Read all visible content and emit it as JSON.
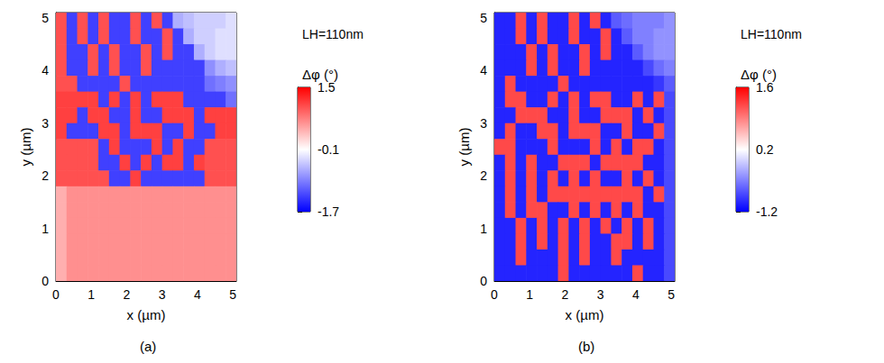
{
  "chart_data": [
    {
      "type": "heatmap",
      "caption": "(a)",
      "annotations": [
        "LH=110nm"
      ],
      "x_label": "x (µm)",
      "y_label": "y (µm)",
      "xlim": [
        0,
        5.1
      ],
      "ylim": [
        0,
        5.1
      ],
      "xticks": [
        0,
        1,
        2,
        3,
        4,
        5
      ],
      "yticks": [
        0,
        1,
        2,
        3,
        4,
        5
      ],
      "x": [
        0.15,
        0.45,
        0.75,
        1.05,
        1.35,
        1.65,
        1.95,
        2.25,
        2.55,
        2.85,
        3.15,
        3.45,
        3.75,
        4.05,
        4.35,
        4.65,
        4.95
      ],
      "y": [
        4.95,
        4.65,
        4.35,
        4.05,
        3.75,
        3.45,
        3.15,
        2.85,
        2.55,
        2.25,
        1.95,
        1.65,
        1.35,
        1.05,
        0.75,
        0.45,
        0.15
      ],
      "z": [
        [
          1.0,
          -1.3,
          1.0,
          -1.3,
          1.0,
          -1.3,
          -1.3,
          1.0,
          -1.3,
          1.0,
          -1.3,
          -0.6,
          -0.5,
          -0.4,
          -0.4,
          -0.4,
          -0.3
        ],
        [
          1.0,
          -1.3,
          1.0,
          -1.3,
          1.0,
          -1.3,
          -1.3,
          1.0,
          -1.3,
          -1.3,
          1.0,
          -1.3,
          -0.6,
          -0.4,
          -0.4,
          -0.3,
          -0.3
        ],
        [
          1.0,
          -1.3,
          -1.3,
          1.0,
          -1.3,
          1.0,
          -1.3,
          -1.3,
          1.0,
          -1.3,
          1.0,
          -1.3,
          -1.3,
          -0.6,
          -0.4,
          -0.3,
          -0.3
        ],
        [
          1.0,
          -1.3,
          -1.3,
          1.0,
          -1.3,
          1.0,
          -1.3,
          -1.3,
          1.0,
          -1.3,
          -1.3,
          -1.3,
          -1.3,
          -1.3,
          -0.8,
          -0.6,
          -0.5
        ],
        [
          1.0,
          1.0,
          -1.3,
          -1.3,
          -1.3,
          -1.3,
          1.0,
          -1.3,
          -1.3,
          -1.3,
          -1.3,
          -1.3,
          -1.3,
          -1.3,
          -1.0,
          -0.9,
          -0.8
        ],
        [
          1.1,
          1.1,
          1.1,
          1.1,
          -1.3,
          1.1,
          -1.3,
          1.1,
          -1.3,
          1.1,
          1.1,
          1.1,
          -1.3,
          -1.3,
          -1.3,
          -1.3,
          -1.0
        ],
        [
          1.1,
          1.1,
          -1.3,
          1.1,
          1.1,
          -1.3,
          -1.3,
          1.1,
          -1.3,
          -1.3,
          1.1,
          1.1,
          1.1,
          -1.3,
          1.1,
          1.1,
          1.1
        ],
        [
          1.1,
          -1.3,
          -1.3,
          -1.3,
          1.1,
          1.1,
          -1.3,
          1.1,
          1.1,
          1.1,
          -1.3,
          -1.3,
          1.1,
          -1.3,
          -1.3,
          1.1,
          1.1
        ],
        [
          1.0,
          1.0,
          1.0,
          1.0,
          -1.3,
          1.1,
          -1.3,
          -1.3,
          -1.3,
          1.1,
          -1.3,
          1.1,
          -1.3,
          -1.3,
          1.0,
          1.0,
          1.0
        ],
        [
          1.0,
          1.0,
          1.0,
          1.0,
          -1.3,
          -1.3,
          1.1,
          -1.3,
          1.1,
          -1.3,
          1.1,
          1.1,
          -1.3,
          1.1,
          1.0,
          1.0,
          1.0
        ],
        [
          1.0,
          1.0,
          1.0,
          1.0,
          1.0,
          -1.3,
          -1.3,
          1.1,
          -1.3,
          -1.3,
          -1.3,
          -1.3,
          -1.3,
          -1.3,
          1.0,
          1.0,
          1.0
        ],
        [
          0.4,
          0.6,
          0.6,
          0.6,
          0.6,
          0.6,
          0.6,
          0.6,
          0.6,
          0.6,
          0.6,
          0.6,
          0.6,
          0.6,
          0.6,
          0.6,
          0.6
        ],
        [
          0.4,
          0.6,
          0.6,
          0.6,
          0.6,
          0.6,
          0.6,
          0.6,
          0.6,
          0.6,
          0.6,
          0.6,
          0.6,
          0.6,
          0.6,
          0.6,
          0.6
        ],
        [
          0.4,
          0.6,
          0.6,
          0.6,
          0.6,
          0.6,
          0.6,
          0.6,
          0.6,
          0.6,
          0.6,
          0.6,
          0.6,
          0.6,
          0.6,
          0.6,
          0.6
        ],
        [
          0.4,
          0.6,
          0.6,
          0.6,
          0.6,
          0.6,
          0.6,
          0.6,
          0.6,
          0.6,
          0.6,
          0.6,
          0.6,
          0.6,
          0.6,
          0.6,
          0.6
        ],
        [
          0.4,
          0.6,
          0.6,
          0.6,
          0.6,
          0.6,
          0.6,
          0.6,
          0.6,
          0.6,
          0.6,
          0.6,
          0.6,
          0.6,
          0.6,
          0.6,
          0.6
        ],
        [
          0.4,
          0.6,
          0.6,
          0.6,
          0.6,
          0.6,
          0.6,
          0.6,
          0.6,
          0.6,
          0.6,
          0.6,
          0.6,
          0.6,
          0.6,
          0.6,
          0.6
        ]
      ],
      "colorbar": {
        "title": "Δφ (°)",
        "range": [
          -1.7,
          1.5
        ],
        "ticks": [
          -1.7,
          -0.1,
          1.5
        ],
        "colors": [
          "#0000ff",
          "#ffffff",
          "#ff0000"
        ]
      }
    },
    {
      "type": "heatmap",
      "caption": "(b)",
      "annotations": [
        "LH=110nm"
      ],
      "x_label": "x (µm)",
      "y_label": "y (µm)",
      "xlim": [
        0,
        5.1
      ],
      "ylim": [
        0,
        5.1
      ],
      "xticks": [
        0,
        1,
        2,
        3,
        4,
        5
      ],
      "yticks": [
        0,
        1,
        2,
        3,
        4,
        5
      ],
      "x": [
        0.15,
        0.45,
        0.75,
        1.05,
        1.35,
        1.65,
        1.95,
        2.25,
        2.55,
        2.85,
        3.15,
        3.45,
        3.75,
        4.05,
        4.35,
        4.65,
        4.95
      ],
      "y": [
        4.95,
        4.65,
        4.35,
        4.05,
        3.75,
        3.45,
        3.15,
        2.85,
        2.55,
        2.25,
        1.95,
        1.65,
        1.35,
        1.05,
        0.75,
        0.45,
        0.15
      ],
      "z": [
        [
          -1.0,
          -1.0,
          1.2,
          -1.0,
          1.2,
          -1.0,
          -1.0,
          1.2,
          -1.0,
          1.2,
          -1.0,
          -0.7,
          -0.6,
          -0.5,
          -0.5,
          -0.5,
          -0.4
        ],
        [
          -1.0,
          -1.0,
          1.2,
          -1.0,
          1.2,
          -1.0,
          -1.0,
          1.2,
          -1.0,
          -1.0,
          1.2,
          -1.0,
          -0.7,
          -0.5,
          -0.5,
          -0.4,
          -0.4
        ],
        [
          -1.0,
          -1.0,
          -1.0,
          1.2,
          -1.0,
          1.2,
          -1.0,
          -1.0,
          1.2,
          -1.0,
          1.2,
          -1.0,
          -1.0,
          -0.7,
          -0.5,
          -0.4,
          -0.4
        ],
        [
          -1.0,
          -1.0,
          -1.0,
          1.2,
          -1.0,
          1.2,
          -1.0,
          -1.0,
          1.2,
          -1.0,
          -1.0,
          -1.0,
          -1.0,
          -1.0,
          -0.8,
          -0.6,
          -0.5
        ],
        [
          -1.0,
          1.2,
          -1.0,
          -1.0,
          -1.0,
          -1.0,
          1.2,
          -1.0,
          -1.0,
          -1.0,
          -1.0,
          -1.0,
          -1.0,
          -1.0,
          -1.0,
          -0.9,
          -0.7
        ],
        [
          -1.0,
          1.2,
          1.2,
          -1.0,
          -1.0,
          1.2,
          -1.0,
          1.2,
          -1.0,
          1.2,
          1.2,
          -1.0,
          -1.0,
          1.2,
          -1.0,
          1.2,
          -0.8
        ],
        [
          -1.0,
          -1.0,
          1.2,
          1.2,
          1.2,
          -1.0,
          -1.0,
          1.2,
          -1.0,
          -1.0,
          1.2,
          1.2,
          1.2,
          -1.0,
          1.2,
          -1.0,
          -0.8
        ],
        [
          -1.0,
          1.2,
          -1.0,
          -1.0,
          1.2,
          1.2,
          -1.0,
          1.2,
          1.2,
          1.2,
          -1.0,
          -1.0,
          1.2,
          -1.0,
          -1.0,
          1.2,
          -0.8
        ],
        [
          1.2,
          1.2,
          -1.0,
          -1.0,
          -1.0,
          1.2,
          -1.0,
          -1.0,
          -1.0,
          1.2,
          -1.0,
          1.2,
          -1.0,
          1.2,
          1.2,
          -1.0,
          -0.8
        ],
        [
          -1.0,
          1.2,
          -1.0,
          1.2,
          -1.0,
          -1.0,
          1.2,
          1.2,
          1.2,
          -1.0,
          1.2,
          1.2,
          1.2,
          1.2,
          -1.0,
          -1.0,
          -0.8
        ],
        [
          -1.0,
          1.2,
          -1.0,
          1.2,
          -1.0,
          1.2,
          -1.0,
          1.2,
          -1.0,
          1.2,
          -1.0,
          -1.0,
          1.2,
          -1.0,
          1.2,
          -1.0,
          -0.8
        ],
        [
          -1.0,
          1.2,
          -1.0,
          1.2,
          -1.0,
          1.2,
          1.2,
          1.2,
          1.2,
          1.2,
          1.2,
          1.2,
          1.2,
          1.2,
          -1.0,
          1.2,
          -0.8
        ],
        [
          -1.0,
          1.2,
          -1.0,
          1.2,
          1.2,
          -1.0,
          -1.0,
          1.2,
          -1.0,
          1.2,
          -1.0,
          1.2,
          -1.0,
          1.2,
          -1.0,
          -1.0,
          -0.8
        ],
        [
          -1.0,
          -1.0,
          1.2,
          -1.0,
          1.2,
          -1.0,
          1.2,
          -1.0,
          1.2,
          -1.0,
          1.2,
          -1.0,
          1.2,
          -1.0,
          1.2,
          -1.0,
          -0.8
        ],
        [
          -1.0,
          -1.0,
          1.2,
          -1.0,
          1.2,
          -1.0,
          1.2,
          -1.0,
          1.2,
          -1.0,
          -1.0,
          1.2,
          1.2,
          -1.0,
          1.2,
          -1.0,
          -0.8
        ],
        [
          -1.0,
          -1.0,
          1.2,
          -1.0,
          -1.0,
          -1.0,
          1.2,
          -1.0,
          1.2,
          -1.0,
          -1.0,
          1.2,
          -1.0,
          -1.0,
          -1.0,
          -1.0,
          -0.8
        ],
        [
          -1.0,
          -1.0,
          -1.0,
          -1.0,
          -1.0,
          -1.0,
          1.2,
          -1.0,
          -1.0,
          -1.0,
          -1.0,
          -1.0,
          -1.0,
          1.2,
          -1.0,
          -1.0,
          -0.8
        ]
      ],
      "colorbar": {
        "title": "Δφ (°)",
        "range": [
          -1.2,
          1.6
        ],
        "ticks": [
          1.6,
          0.2,
          -1.2
        ],
        "colors": [
          "#0000ff",
          "#ffffff",
          "#ff0000"
        ]
      }
    }
  ]
}
